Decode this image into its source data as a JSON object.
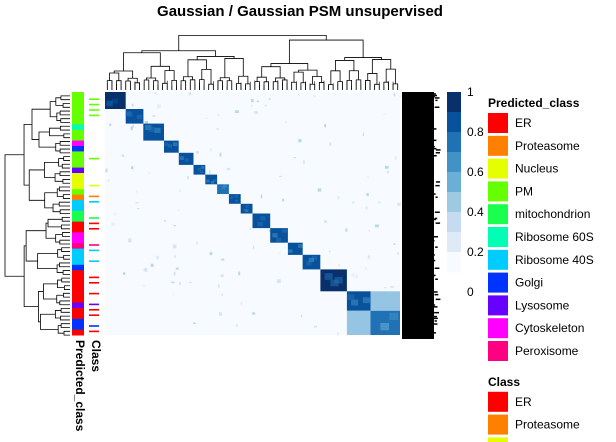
{
  "chart_data": {
    "type": "heatmap",
    "title": "Gaussian / Gaussian PSM unsupervised",
    "colorbar": {
      "ticks": [
        "1",
        "0.8",
        "0.6",
        "0.4",
        "0.2",
        "0"
      ],
      "values": [
        1,
        0.8,
        0.6,
        0.4,
        0.2,
        0
      ],
      "colors": [
        "#f7fbff",
        "#deebf7",
        "#c6dbef",
        "#9ecae1",
        "#6baed6",
        "#4292c6",
        "#2171b5",
        "#08519c",
        "#08306b"
      ]
    },
    "annotation_labels": [
      "Class",
      "Predicted_class"
    ],
    "legends": [
      {
        "title": "Predicted_class",
        "entries": [
          {
            "label": "ER",
            "color": "#ff0000"
          },
          {
            "label": "Proteasome",
            "color": "#ff8000"
          },
          {
            "label": "Nucleus",
            "color": "#e6ff00"
          },
          {
            "label": "PM",
            "color": "#66ff00"
          },
          {
            "label": "mitochondrion",
            "color": "#1aff4d"
          },
          {
            "label": "Ribosome 60S",
            "color": "#00ffb3"
          },
          {
            "label": "Ribosome 40S",
            "color": "#00ccff"
          },
          {
            "label": "Golgi",
            "color": "#0033ff"
          },
          {
            "label": "Lysosome",
            "color": "#6600ff"
          },
          {
            "label": "Cytoskeleton",
            "color": "#ff00ff"
          },
          {
            "label": "Peroxisome",
            "color": "#ff0080"
          }
        ]
      },
      {
        "title": "Class",
        "entries": [
          {
            "label": "ER",
            "color": "#ff0000"
          },
          {
            "label": "Proteasome",
            "color": "#ff8000"
          },
          {
            "label": "Nucleus",
            "color": "#e6ff00"
          }
        ]
      }
    ],
    "block_clusters": [
      {
        "start": 0.0,
        "end": 0.07,
        "value": 0.95
      },
      {
        "start": 0.07,
        "end": 0.13,
        "value": 0.9
      },
      {
        "start": 0.13,
        "end": 0.2,
        "value": 0.85
      },
      {
        "start": 0.2,
        "end": 0.25,
        "value": 0.85
      },
      {
        "start": 0.25,
        "end": 0.3,
        "value": 0.9
      },
      {
        "start": 0.3,
        "end": 0.34,
        "value": 0.9
      },
      {
        "start": 0.34,
        "end": 0.38,
        "value": 0.85
      },
      {
        "start": 0.38,
        "end": 0.42,
        "value": 0.8
      },
      {
        "start": 0.42,
        "end": 0.46,
        "value": 0.85
      },
      {
        "start": 0.46,
        "end": 0.5,
        "value": 0.85
      },
      {
        "start": 0.5,
        "end": 0.56,
        "value": 0.9
      },
      {
        "start": 0.56,
        "end": 0.62,
        "value": 0.85
      },
      {
        "start": 0.62,
        "end": 0.67,
        "value": 0.9
      },
      {
        "start": 0.67,
        "end": 0.73,
        "value": 0.9
      },
      {
        "start": 0.73,
        "end": 0.82,
        "value": 0.95
      },
      {
        "start": 0.82,
        "end": 0.9,
        "value": 0.9
      },
      {
        "start": 0.9,
        "end": 1.0,
        "value": 0.75
      }
    ]
  }
}
